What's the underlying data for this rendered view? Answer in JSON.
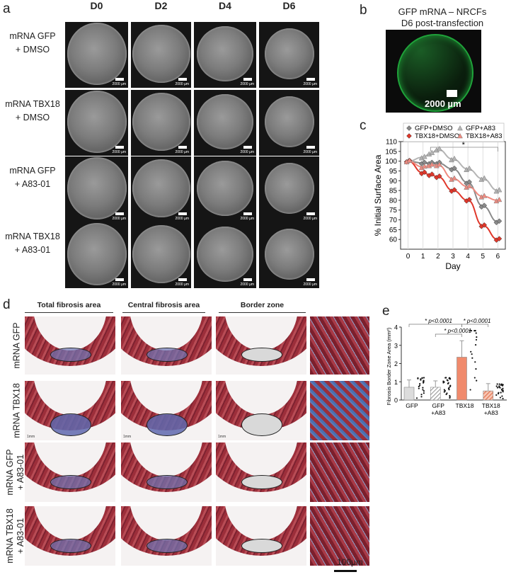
{
  "panel_a": {
    "label": "a",
    "columns": [
      "D0",
      "D2",
      "D4",
      "D6"
    ],
    "rows": [
      {
        "line1": "mRNA GFP",
        "line2": "+ DMSO"
      },
      {
        "line1": "mRNA TBX18",
        "line2": "+ DMSO"
      },
      {
        "line1": "mRNA GFP",
        "line2": "+ A83-01"
      },
      {
        "line1": "mRNA TBX18",
        "line2": "+ A83-01"
      }
    ],
    "scale_text": "2000 µm"
  },
  "panel_b": {
    "label": "b",
    "title_line1": "GFP mRNA – NRCFs",
    "title_line2": "D6 post-transfection",
    "scale_text": "2000 µm"
  },
  "panel_c": {
    "label": "c",
    "significance": "*"
  },
  "panel_d": {
    "label": "d",
    "headers": [
      "Total fibrosis area",
      "Central fibrosis area",
      "Border zone"
    ],
    "rows": [
      {
        "line1": "mRNA GFP",
        "line2": ""
      },
      {
        "line1": "mRNA TBX18",
        "line2": ""
      },
      {
        "line1": "mRNA GFP",
        "line2": "+ A83-01"
      },
      {
        "line1": "mRNA TBX18",
        "line2": "+ A83-01"
      }
    ],
    "small_scale": "1mm",
    "scale_text": "100µm"
  },
  "panel_e": {
    "label": "e",
    "p_values": [
      "* p<0.0001",
      "* p<0.0001",
      "* p<0.0001"
    ]
  },
  "chart_data": [
    {
      "type": "line",
      "title": "",
      "xlabel": "Day",
      "ylabel": "% Initial Surface Area",
      "xlim": [
        -0.5,
        6.5
      ],
      "ylim": [
        55,
        110
      ],
      "xticks": [
        0,
        1,
        2,
        3,
        4,
        5,
        6
      ],
      "yticks": [
        60,
        65,
        70,
        75,
        80,
        85,
        90,
        95,
        100,
        105,
        110
      ],
      "legend_position": "top",
      "series": [
        {
          "name": "GFP+DMSO",
          "color": "#8a8a8a",
          "marker": "diamond",
          "x": [
            0,
            1,
            1.5,
            2,
            3,
            4,
            5,
            6
          ],
          "y": [
            100,
            99,
            99,
            99,
            96,
            89,
            77,
            69
          ]
        },
        {
          "name": "GFP+A83",
          "color": "#b5b5b5",
          "marker": "triangle",
          "x": [
            0,
            1,
            1.5,
            2,
            3,
            4,
            5,
            6
          ],
          "y": [
            100,
            102,
            104,
            106,
            101,
            96,
            91,
            85
          ]
        },
        {
          "name": "TBX18+DMSO",
          "color": "#e0372a",
          "marker": "diamond",
          "x": [
            0,
            1,
            1.5,
            2,
            3,
            4,
            5,
            6
          ],
          "y": [
            100,
            94,
            93,
            92,
            85,
            80,
            67,
            60
          ]
        },
        {
          "name": "TBX18+A83",
          "color": "#f08b80",
          "marker": "triangle",
          "x": [
            0,
            1,
            1.5,
            2,
            3,
            4,
            5,
            6
          ],
          "y": [
            100,
            97,
            98,
            98,
            91,
            87,
            82,
            80
          ]
        }
      ],
      "annotation": "*"
    },
    {
      "type": "bar",
      "title": "",
      "xlabel": "",
      "ylabel": "Fibrosis Border Zone Area (mm²)",
      "ylim": [
        0,
        4
      ],
      "yticks": [
        0,
        1,
        2,
        3,
        4
      ],
      "categories": [
        "GFP",
        "GFP +A83",
        "TBX18",
        "TBX18 +A83"
      ],
      "values": [
        0.7,
        0.7,
        2.35,
        0.5
      ],
      "errors": [
        0.4,
        0.35,
        0.9,
        0.4
      ],
      "colors": [
        "#dcdcdc",
        "#dcdcdc",
        "#f08a6c",
        "#f08a6c"
      ],
      "hatched": [
        false,
        true,
        false,
        true
      ]
    }
  ]
}
